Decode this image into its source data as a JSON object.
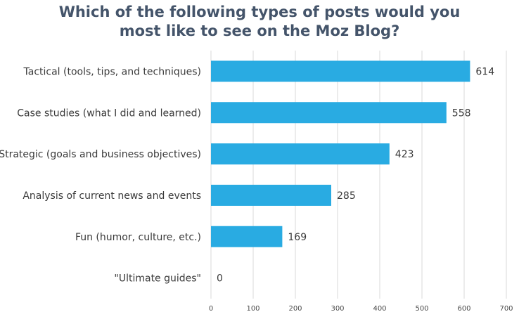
{
  "chart_data": {
    "type": "bar",
    "orientation": "horizontal",
    "title_line1": "Which of the following types of posts would you",
    "title_line2": "most like to see on the Moz Blog?",
    "categories": [
      "Tactical (tools, tips, and techniques)",
      "Case studies (what I did and learned)",
      "Strategic (goals and business objectives)",
      "Analysis of current news and events",
      "Fun (humor, culture, etc.)",
      "\"Ultimate guides\""
    ],
    "values": [
      614,
      558,
      423,
      285,
      169,
      0
    ],
    "xlim": [
      0,
      700
    ],
    "xticks": [
      0,
      100,
      200,
      300,
      400,
      500,
      600,
      700
    ],
    "grid": true,
    "legend": "none",
    "bar_color": "#29abe2",
    "title_color": "#44546a",
    "grid_color": "#d9d9d9"
  }
}
